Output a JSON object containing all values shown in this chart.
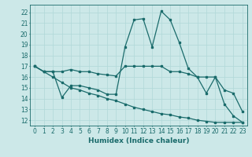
{
  "xlabel": "Humidex (Indice chaleur)",
  "ylabel": "",
  "bg_color": "#cce8e8",
  "line_color": "#1a6b6b",
  "grid_color": "#b0d8d8",
  "xlim": [
    -0.5,
    23.5
  ],
  "ylim": [
    11.5,
    22.7
  ],
  "yticks": [
    12,
    13,
    14,
    15,
    16,
    17,
    18,
    19,
    20,
    21,
    22
  ],
  "xticks": [
    0,
    1,
    2,
    3,
    4,
    5,
    6,
    7,
    8,
    9,
    10,
    11,
    12,
    13,
    14,
    15,
    16,
    17,
    18,
    19,
    20,
    21,
    22,
    23
  ],
  "series": [
    [
      17.0,
      16.5,
      16.5,
      14.1,
      15.2,
      15.2,
      15.0,
      14.8,
      14.4,
      14.4,
      18.8,
      21.3,
      21.4,
      18.8,
      22.1,
      21.3,
      19.2,
      16.8,
      16.0,
      14.5,
      16.0,
      13.5,
      12.4,
      11.8
    ],
    [
      17.0,
      16.5,
      16.5,
      16.5,
      16.7,
      16.5,
      16.5,
      16.3,
      16.2,
      16.1,
      17.0,
      17.0,
      17.0,
      17.0,
      17.0,
      16.5,
      16.5,
      16.3,
      16.0,
      16.0,
      16.0,
      14.8,
      14.5,
      12.8
    ],
    [
      17.0,
      16.5,
      16.0,
      15.5,
      15.0,
      14.8,
      14.5,
      14.3,
      14.0,
      13.8,
      13.5,
      13.2,
      13.0,
      12.8,
      12.6,
      12.5,
      12.3,
      12.2,
      12.0,
      11.9,
      11.8,
      11.8,
      11.8,
      11.8
    ]
  ]
}
